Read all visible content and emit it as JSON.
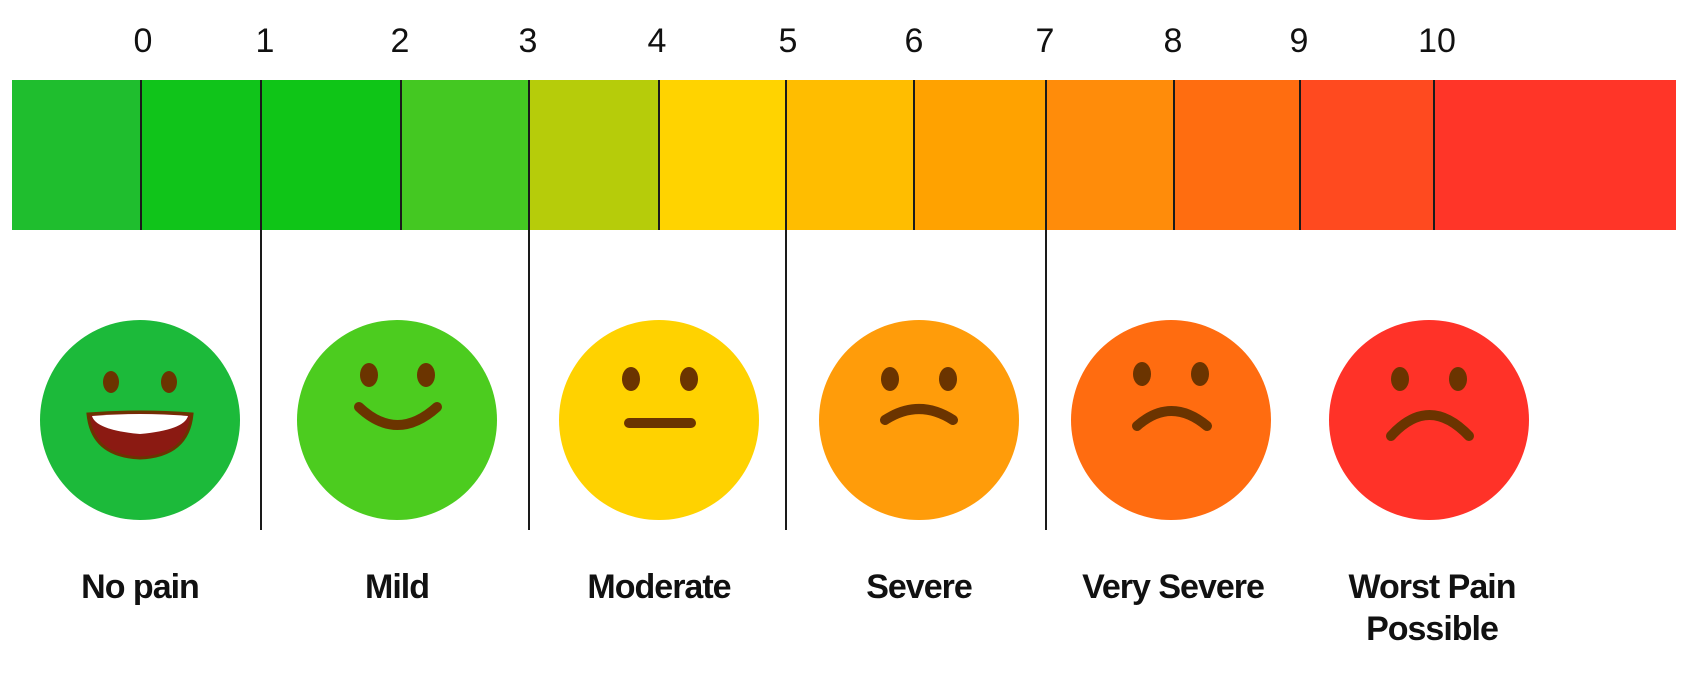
{
  "scale": {
    "ticks": [
      "0",
      "1",
      "2",
      "3",
      "4",
      "5",
      "6",
      "7",
      "8",
      "9",
      "10"
    ],
    "segment_colors": [
      "#1fbe2e",
      "#10c41a",
      "#0fc517",
      "#44c822",
      "#b6cc0a",
      "#ffd300",
      "#ffbd00",
      "#ffa200",
      "#ff8c0a",
      "#ff6d10",
      "#ff4a1f",
      "#ff3528"
    ]
  },
  "faces": [
    {
      "label": "No pain",
      "color": "#1cba3a",
      "expression": "laughing-face"
    },
    {
      "label": "Mild",
      "color": "#4ccc1f",
      "expression": "smiling-face"
    },
    {
      "label": "Moderate",
      "color": "#ffd200",
      "expression": "neutral-face"
    },
    {
      "label": "Severe",
      "color": "#ff9c0a",
      "expression": "slightly-frowning-face"
    },
    {
      "label": "Very Severe",
      "color": "#ff6c10",
      "expression": "frowning-face"
    },
    {
      "label": "Worst Pain\nPossible",
      "color": "#ff3228",
      "expression": "very-frowning-face"
    }
  ],
  "feature_color": "#6b3400"
}
